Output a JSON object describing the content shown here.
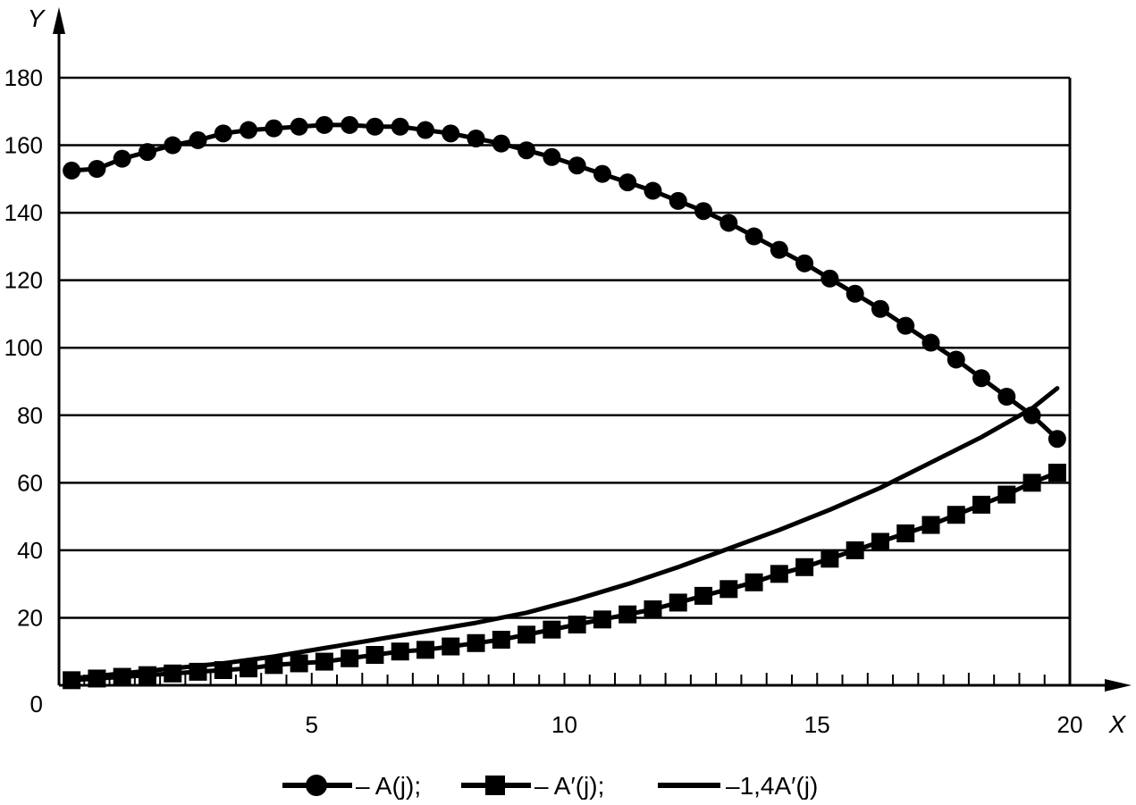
{
  "chart_data": {
    "type": "line",
    "title": "",
    "xlabel": "X",
    "ylabel": "Y",
    "xlim": [
      0,
      20
    ],
    "ylim": [
      0,
      180
    ],
    "x_ticks": [
      5,
      10,
      15,
      20
    ],
    "x_tick_labels": [
      "5",
      "10",
      "15",
      "20"
    ],
    "y_ticks": [
      20,
      40,
      60,
      80,
      100,
      120,
      140,
      160,
      180
    ],
    "y_tick_labels": [
      "20",
      "40",
      "60",
      "80",
      "100",
      "120",
      "140",
      "160",
      "180"
    ],
    "origin_label": "0",
    "grid": "horizontal",
    "legend_position": "bottom",
    "colors": {
      "series": "#000000",
      "background": "#ffffff"
    },
    "series": [
      {
        "name": "– A(j);",
        "marker": "circle",
        "x": [
          0.25,
          0.75,
          1.25,
          1.75,
          2.25,
          2.75,
          3.25,
          3.75,
          4.25,
          4.75,
          5.25,
          5.75,
          6.25,
          6.75,
          7.25,
          7.75,
          8.25,
          8.75,
          9.25,
          9.75,
          10.25,
          10.75,
          11.25,
          11.75,
          12.25,
          12.75,
          13.25,
          13.75,
          14.25,
          14.75,
          15.25,
          15.75,
          16.25,
          16.75,
          17.25,
          17.75,
          18.25,
          18.75,
          19.25,
          19.75
        ],
        "y": [
          152.5,
          153,
          156,
          158,
          160,
          161.5,
          163.5,
          164.5,
          165,
          165.5,
          166,
          166,
          165.5,
          165.5,
          164.5,
          163.5,
          162,
          160.5,
          158.5,
          156.5,
          154,
          151.5,
          149,
          146.5,
          143.5,
          140.5,
          137,
          133,
          129,
          125,
          120.5,
          116,
          111.5,
          106.5,
          101.5,
          96.5,
          91,
          85.5,
          80,
          73
        ]
      },
      {
        "name": "– A′(j);",
        "marker": "square",
        "x": [
          0.25,
          0.75,
          1.25,
          1.75,
          2.25,
          2.75,
          3.25,
          3.75,
          4.25,
          4.75,
          5.25,
          5.75,
          6.25,
          6.75,
          7.25,
          7.75,
          8.25,
          8.75,
          9.25,
          9.75,
          10.25,
          10.75,
          11.25,
          11.75,
          12.25,
          12.75,
          13.25,
          13.75,
          14.25,
          14.75,
          15.25,
          15.75,
          16.25,
          16.75,
          17.25,
          17.75,
          18.25,
          18.75,
          19.25,
          19.75
        ],
        "y": [
          1.5,
          2,
          2.5,
          3,
          3.5,
          4,
          4.5,
          5,
          6,
          6.5,
          7,
          8,
          9,
          10,
          10.5,
          11.5,
          12.5,
          13.5,
          15,
          16.5,
          18,
          19.5,
          21,
          22.5,
          24.5,
          26.5,
          28.5,
          30.5,
          33,
          35,
          37.5,
          40,
          42.5,
          45,
          47.5,
          50.5,
          53.5,
          56.5,
          60,
          63
        ]
      },
      {
        "name": "–1,4A′(j)",
        "marker": "none",
        "x": [
          0.25,
          1.25,
          2.25,
          3.25,
          4.25,
          5.25,
          6.25,
          7.25,
          8.25,
          9.25,
          10.25,
          11.25,
          12.25,
          13.25,
          14.25,
          15.25,
          16.25,
          17.25,
          18.25,
          19.25,
          19.75
        ],
        "y": [
          2,
          3.5,
          5,
          6.5,
          8.5,
          11,
          13.5,
          16,
          18.5,
          21.5,
          25.5,
          30,
          35,
          40.5,
          46,
          52,
          58.5,
          66,
          73.5,
          82,
          88
        ]
      }
    ]
  }
}
